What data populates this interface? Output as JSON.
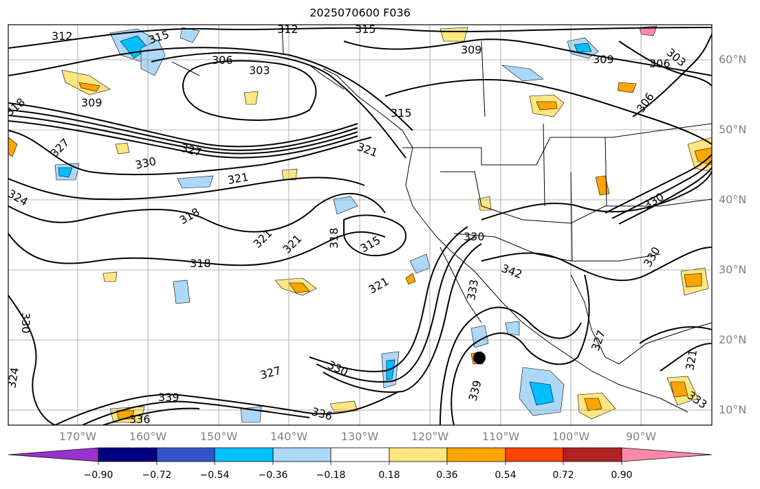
{
  "title": "2025070600 F036",
  "lat_labels": [
    "60°N",
    "50°N",
    "40°N",
    "30°N",
    "20°N",
    "10°N"
  ],
  "lon_labels": [
    "170°W",
    "160°W",
    "150°W",
    "140°W",
    "130°W",
    "120°W",
    "110°W",
    "100°W",
    "90°W"
  ],
  "contour_labels": [
    "312",
    "315",
    "312",
    "315",
    "309",
    "303",
    "306",
    "303",
    "309",
    "306",
    "306",
    "318",
    "309",
    "315",
    "321",
    "327",
    "327",
    "330",
    "321",
    "324",
    "318",
    "321",
    "321",
    "318",
    "315",
    "318",
    "321",
    "330",
    "333",
    "342",
    "336",
    "339",
    "339",
    "336",
    "327",
    "330",
    "324",
    "330",
    "327",
    "321",
    "333",
    "330",
    "330"
  ],
  "colorbar": {
    "tick_labels": [
      "−0.90",
      "−0.72",
      "−0.54",
      "−0.36",
      "−0.18",
      "0.18",
      "0.36",
      "0.54",
      "0.72",
      "0.90"
    ],
    "colors": [
      "#9932cc",
      "#000080",
      "#3355cc",
      "#00bfff",
      "#add8f8",
      "#ffffff",
      "#ffe680",
      "#ffa500",
      "#ff4500",
      "#b22222",
      "#ff88aa"
    ]
  },
  "marker": {
    "type": "dot",
    "color": "#000000"
  }
}
